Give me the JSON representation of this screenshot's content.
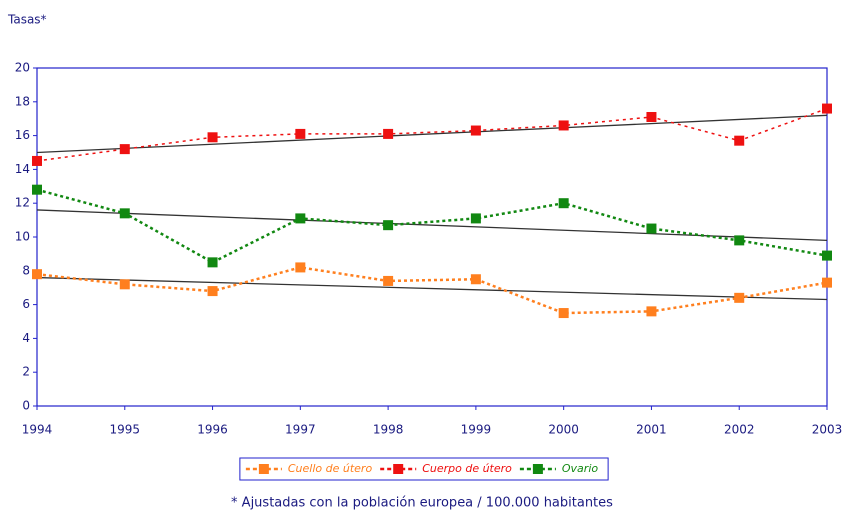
{
  "chart_data": {
    "type": "line",
    "y_axis_label": "Tasas*",
    "footnote": "* Ajustadas con la población europea / 100.000 habitantes",
    "x": [
      1994,
      1995,
      1996,
      1997,
      1998,
      1999,
      2000,
      2001,
      2002,
      2003
    ],
    "xlim": [
      1994,
      2003
    ],
    "xticks": [
      1994,
      1995,
      1996,
      1997,
      1998,
      1999,
      2000,
      2001,
      2002,
      2003
    ],
    "ylim": [
      0,
      20
    ],
    "yticks": [
      0,
      2,
      4,
      6,
      8,
      10,
      12,
      14,
      16,
      18,
      20
    ],
    "grid": false,
    "legend": "bottom",
    "series": [
      {
        "name": "Cuello de útero",
        "color": "#ff7f1e",
        "values": [
          7.8,
          7.2,
          6.8,
          8.2,
          7.4,
          7.5,
          5.5,
          5.6,
          6.4,
          7.3
        ]
      },
      {
        "name": "Cuerpo de útero",
        "color": "#ee1111",
        "values": [
          14.5,
          15.2,
          15.9,
          16.1,
          16.1,
          16.3,
          16.6,
          17.1,
          15.7,
          17.6
        ]
      },
      {
        "name": "Ovario",
        "color": "#118811",
        "values": [
          12.8,
          11.4,
          8.5,
          11.1,
          10.7,
          11.1,
          12.0,
          10.5,
          9.8,
          8.9
        ]
      }
    ],
    "trend_lines": [
      {
        "color": "#333333",
        "values": [
          7.6,
          6.3
        ]
      },
      {
        "color": "#333333",
        "values": [
          15.0,
          17.2
        ]
      },
      {
        "color": "#333333",
        "values": [
          11.6,
          9.8
        ]
      }
    ]
  }
}
